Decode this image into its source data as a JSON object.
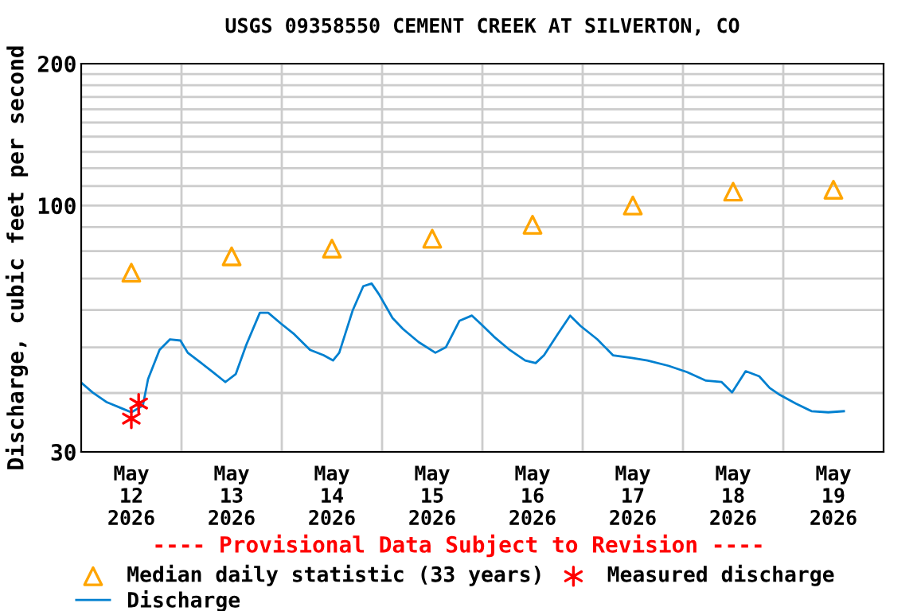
{
  "chart_data": {
    "type": "line",
    "title": "USGS 09358550 CEMENT CREEK AT SILVERTON, CO",
    "ylabel": "Discharge, cubic feet per second",
    "annotations": [
      "---- Provisional Data Subject to Revision ----"
    ],
    "log": true,
    "grid": true,
    "legend": "bottom",
    "xlim": [
      "2026-05-12T00:00",
      "2026-05-20T00:00"
    ],
    "xticks": [
      {
        "value": "2026-05-12T12:00",
        "label": "May\n12\n2026"
      },
      {
        "value": "2026-05-13T12:00",
        "label": "May\n13\n2026"
      },
      {
        "value": "2026-05-14T12:00",
        "label": "May\n14\n2026"
      },
      {
        "value": "2026-05-15T12:00",
        "label": "May\n15\n2026"
      },
      {
        "value": "2026-05-16T12:00",
        "label": "May\n16\n2026"
      },
      {
        "value": "2026-05-17T12:00",
        "label": "May\n17\n2026"
      },
      {
        "value": "2026-05-18T12:00",
        "label": "May\n18\n2026"
      },
      {
        "value": "2026-05-19T12:00",
        "label": "May\n19\n2026"
      },
      {
        "value": "2026-05-13T00:00",
        "label": null
      },
      {
        "value": "2026-05-14T00:00",
        "label": null
      },
      {
        "value": "2026-05-15T00:00",
        "label": null
      },
      {
        "value": "2026-05-16T00:00",
        "label": null
      },
      {
        "value": "2026-05-17T00:00",
        "label": null
      },
      {
        "value": "2026-05-18T00:00",
        "label": null
      },
      {
        "value": "2026-05-19T00:00",
        "label": null
      }
    ],
    "ylim": [
      30,
      200
    ],
    "yticks": [
      30,
      {
        "value": 40,
        "label": null
      },
      {
        "value": 50,
        "label": null
      },
      {
        "value": 60,
        "label": null
      },
      {
        "value": 70,
        "label": null
      },
      {
        "value": 80,
        "label": null
      },
      {
        "value": 90,
        "label": null
      },
      100,
      {
        "value": 110,
        "label": null
      },
      {
        "value": 120,
        "label": null
      },
      {
        "value": 130,
        "label": null
      },
      {
        "value": 140,
        "label": null
      },
      {
        "value": 150,
        "label": null
      },
      {
        "value": 160,
        "label": null
      },
      {
        "value": 170,
        "label": null
      },
      {
        "value": 180,
        "label": null
      },
      {
        "value": 190,
        "label": null
      },
      200
    ],
    "series": [
      {
        "name": "Median daily statistic (33 years)",
        "type": "scatter",
        "marker": "triangle",
        "color": "#ffa500",
        "x": [
          "2026-05-12T12:00",
          "2026-05-13T12:00",
          "2026-05-14T12:00",
          "2026-05-15T12:00",
          "2026-05-16T12:00",
          "2026-05-17T12:00",
          "2026-05-18T12:00",
          "2026-05-19T12:00"
        ],
        "values": [
          72,
          78,
          81,
          85,
          91,
          100,
          107,
          108
        ]
      },
      {
        "name": "Measured discharge",
        "type": "scatter",
        "marker": "cross",
        "color": "#ff0000",
        "x": [
          "2026-05-12T12:00",
          "2026-05-12T13:45"
        ],
        "values": [
          35.3,
          38
        ]
      },
      {
        "name": "Discharge",
        "color": "#0080d0",
        "x": [
          "2026-05-12T00:15",
          "2026-05-12T02:45",
          "2026-05-12T06:00",
          "2026-05-12T09:45",
          "2026-05-12T12:00",
          "2026-05-12T14:45",
          "2026-05-12T16:00",
          "2026-05-12T18:45",
          "2026-05-12T21:15",
          "2026-05-12T23:45",
          "2026-05-13T01:30",
          "2026-05-13T04:45",
          "2026-05-13T07:15",
          "2026-05-13T10:30",
          "2026-05-13T13:00",
          "2026-05-13T15:30",
          "2026-05-13T18:45",
          "2026-05-13T20:45",
          "2026-05-13T23:45",
          "2026-05-14T03:00",
          "2026-05-14T06:45",
          "2026-05-14T10:00",
          "2026-05-14T12:15",
          "2026-05-14T13:45",
          "2026-05-14T17:00",
          "2026-05-14T19:30",
          "2026-05-14T21:30",
          "2026-05-14T23:15",
          "2026-05-15T02:30",
          "2026-05-15T05:00",
          "2026-05-15T08:45",
          "2026-05-15T12:45",
          "2026-05-15T15:15",
          "2026-05-15T18:30",
          "2026-05-15T21:30",
          "2026-05-15T23:30",
          "2026-05-16T02:45",
          "2026-05-16T06:30",
          "2026-05-16T10:15",
          "2026-05-16T12:45",
          "2026-05-16T14:45",
          "2026-05-16T18:00",
          "2026-05-16T21:00",
          "2026-05-16T23:30",
          "2026-05-17T03:30",
          "2026-05-17T07:15",
          "2026-05-17T11:45",
          "2026-05-17T15:30",
          "2026-05-17T20:30",
          "2026-05-18T01:00",
          "2026-05-18T05:30",
          "2026-05-18T09:15",
          "2026-05-18T11:45",
          "2026-05-18T15:00",
          "2026-05-18T18:15",
          "2026-05-18T20:45",
          "2026-05-18T23:15",
          "2026-05-19T03:00",
          "2026-05-19T06:45",
          "2026-05-19T10:45",
          "2026-05-19T14:30"
        ],
        "values": [
          41.9,
          40.1,
          38.3,
          37.1,
          36.4,
          37.6,
          42.8,
          49.4,
          52.0,
          51.7,
          48.7,
          46.3,
          44.5,
          42.2,
          43.9,
          50.6,
          59.2,
          59.2,
          56.2,
          53.3,
          49.4,
          48.1,
          46.9,
          48.7,
          60.0,
          67.4,
          68.3,
          64.8,
          57.7,
          54.7,
          51.3,
          48.7,
          50.0,
          56.9,
          58.4,
          56.2,
          52.7,
          49.4,
          46.9,
          46.3,
          48.1,
          53.3,
          58.4,
          55.5,
          52.0,
          48.1,
          47.5,
          46.9,
          45.7,
          44.3,
          42.5,
          42.2,
          40.1,
          44.5,
          43.4,
          41.0,
          39.6,
          38.0,
          36.6,
          36.4,
          36.6
        ]
      }
    ]
  }
}
